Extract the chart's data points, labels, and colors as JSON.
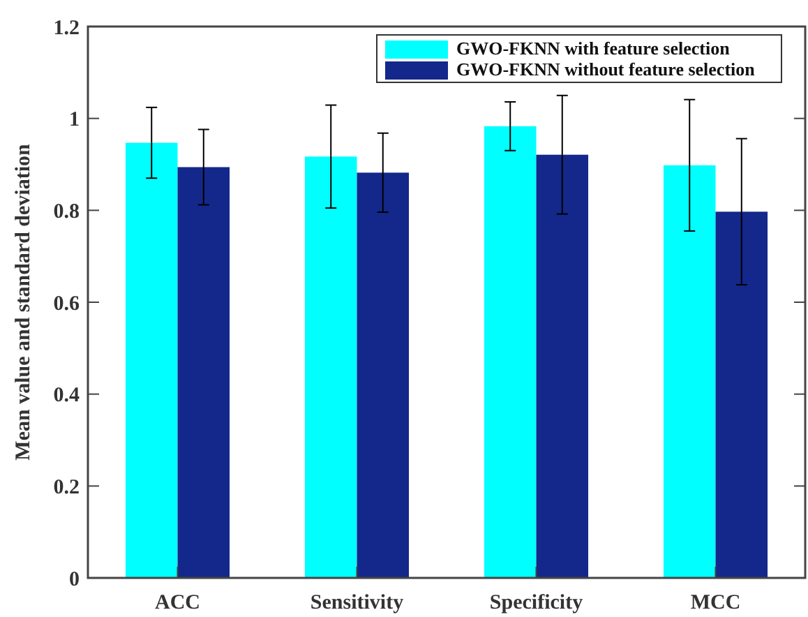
{
  "chart_data": {
    "type": "bar",
    "ylabel": "Mean value and standard deviation",
    "categories": [
      "ACC",
      "Sensitivity",
      "Specificity",
      "MCC"
    ],
    "series": [
      {
        "name": "GWO-FKNN with feature selection",
        "color": "#00ffff",
        "values": [
          0.947,
          0.917,
          0.983,
          0.898
        ],
        "errors": [
          0.077,
          0.112,
          0.053,
          0.143
        ]
      },
      {
        "name": "GWO-FKNN without feature selection",
        "color": "#13288a",
        "values": [
          0.894,
          0.882,
          0.921,
          0.797
        ],
        "errors": [
          0.082,
          0.086,
          0.129,
          0.159
        ]
      }
    ],
    "ylim": [
      0,
      1.2
    ],
    "yticks": [
      0,
      0.2,
      0.4,
      0.6,
      0.8,
      1,
      1.2
    ],
    "legend": "top",
    "grid": false
  }
}
